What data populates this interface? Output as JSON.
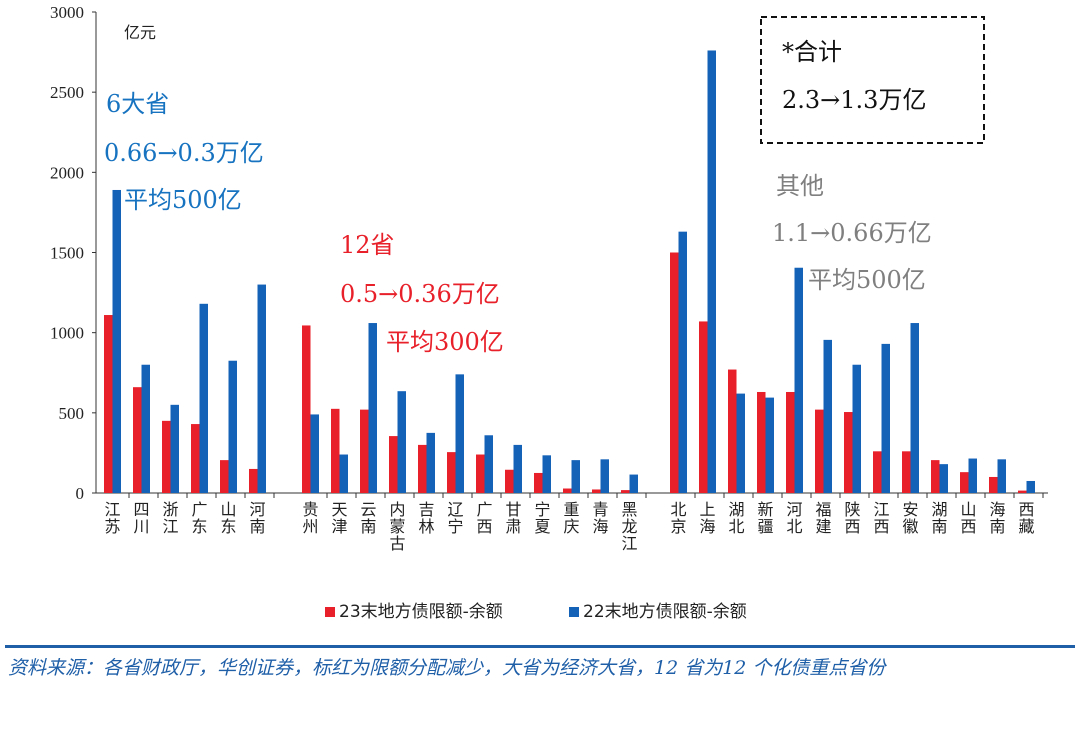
{
  "chart_data": {
    "type": "bar",
    "unit_label": "亿元",
    "ylim": [
      0,
      3000
    ],
    "yticks": [
      "0",
      "500",
      "1000",
      "1500",
      "2000",
      "2500",
      "3000"
    ],
    "groups": [
      {
        "categories": [
          "江苏",
          "四川",
          "浙江",
          "广东",
          "山东",
          "河南"
        ]
      },
      {
        "categories": [
          "贵州",
          "天津",
          "云南",
          "内蒙古",
          "吉林",
          "辽宁",
          "广西",
          "甘肃",
          "宁夏",
          "重庆",
          "青海",
          "黑龙江"
        ]
      },
      {
        "categories": [
          "北京",
          "上海",
          "湖北",
          "新疆",
          "河北",
          "福建",
          "陕西",
          "江西",
          "安徽",
          "湖南",
          "山西",
          "海南",
          "西藏"
        ]
      }
    ],
    "series": [
      {
        "name": "23末地方债限额-余额",
        "color": "#e8202a",
        "values": [
          1110,
          660,
          450,
          430,
          205,
          150,
          1045,
          525,
          520,
          355,
          300,
          255,
          240,
          145,
          125,
          28,
          22,
          18,
          1500,
          1070,
          770,
          630,
          630,
          520,
          505,
          260,
          260,
          205,
          130,
          100,
          15
        ]
      },
      {
        "name": "22末地方债限额-余额",
        "color": "#1461b8",
        "values": [
          1890,
          800,
          550,
          1180,
          825,
          1300,
          490,
          240,
          1060,
          635,
          375,
          740,
          360,
          300,
          235,
          205,
          210,
          115,
          1630,
          2760,
          620,
          595,
          1405,
          955,
          800,
          930,
          1060,
          180,
          215,
          210,
          75
        ]
      }
    ],
    "annotations": {
      "group1": {
        "color": "#1773c0",
        "lines": [
          "6大省",
          "0.66→0.3万亿",
          "平均500亿"
        ]
      },
      "group2": {
        "color": "#e8202a",
        "lines": [
          "12省",
          "0.5→0.36万亿",
          "平均300亿"
        ]
      },
      "group3": {
        "color": "#7f7f7f",
        "lines": [
          "其他",
          "1.1→0.66万亿",
          "平均500亿"
        ]
      },
      "total": {
        "color": "#111111",
        "lines": [
          "*合计",
          "2.3→1.3万亿"
        ]
      }
    }
  },
  "source": "资料来源：各省财政厅，华创证券，标红为限额分配减少，大省为经济大省，12 省为12 个化债重点省份"
}
